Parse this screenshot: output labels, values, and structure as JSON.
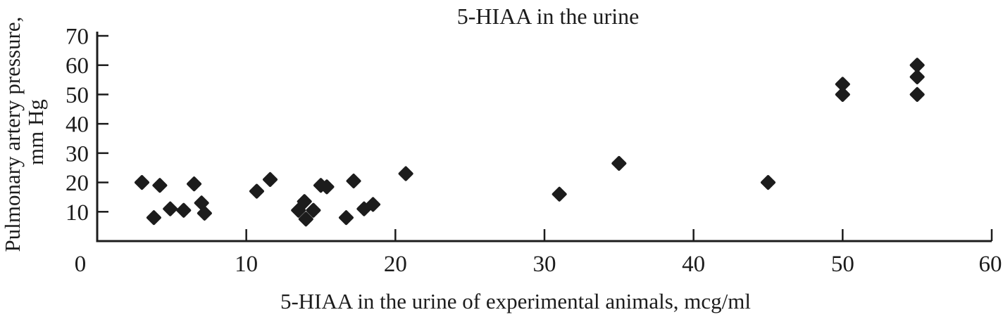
{
  "chart_data": {
    "type": "scatter",
    "title": "5-HIAA in the urine",
    "xlabel": "5-HIAA in the urine of experimental animals, mcg/ml",
    "ylabel": "Pulmonary artery pressure, mm Hg",
    "ylabel_line1": "Pulmonary artery pressure,",
    "ylabel_line2": "mm Hg",
    "xlim": [
      0,
      60
    ],
    "ylim": [
      0,
      70
    ],
    "x_ticks": [
      0,
      10,
      20,
      30,
      40,
      50,
      60
    ],
    "y_ticks": [
      10,
      20,
      30,
      40,
      50,
      60,
      70
    ],
    "grid": false,
    "legend": "none",
    "marker": "diamond",
    "marker_color": "#1c1c1c",
    "points": [
      [
        3.0,
        20.0
      ],
      [
        4.2,
        19.0
      ],
      [
        6.5,
        19.5
      ],
      [
        3.8,
        8.0
      ],
      [
        4.9,
        11.0
      ],
      [
        5.8,
        10.5
      ],
      [
        7.0,
        13.0
      ],
      [
        7.2,
        9.5
      ],
      [
        10.7,
        17.0
      ],
      [
        11.6,
        21.0
      ],
      [
        13.9,
        13.5
      ],
      [
        13.5,
        10.5
      ],
      [
        14.5,
        10.5
      ],
      [
        14.0,
        7.5
      ],
      [
        15.0,
        19.0
      ],
      [
        15.4,
        18.5
      ],
      [
        17.2,
        20.5
      ],
      [
        16.7,
        8.0
      ],
      [
        17.9,
        11.0
      ],
      [
        18.5,
        12.5
      ],
      [
        20.7,
        23.0
      ],
      [
        31.0,
        16.0
      ],
      [
        35.0,
        26.5
      ],
      [
        45.0,
        20.0
      ],
      [
        50.0,
        53.5
      ],
      [
        50.0,
        50.0
      ],
      [
        55.0,
        60.0
      ],
      [
        55.0,
        56.0
      ],
      [
        55.0,
        50.0
      ]
    ]
  }
}
